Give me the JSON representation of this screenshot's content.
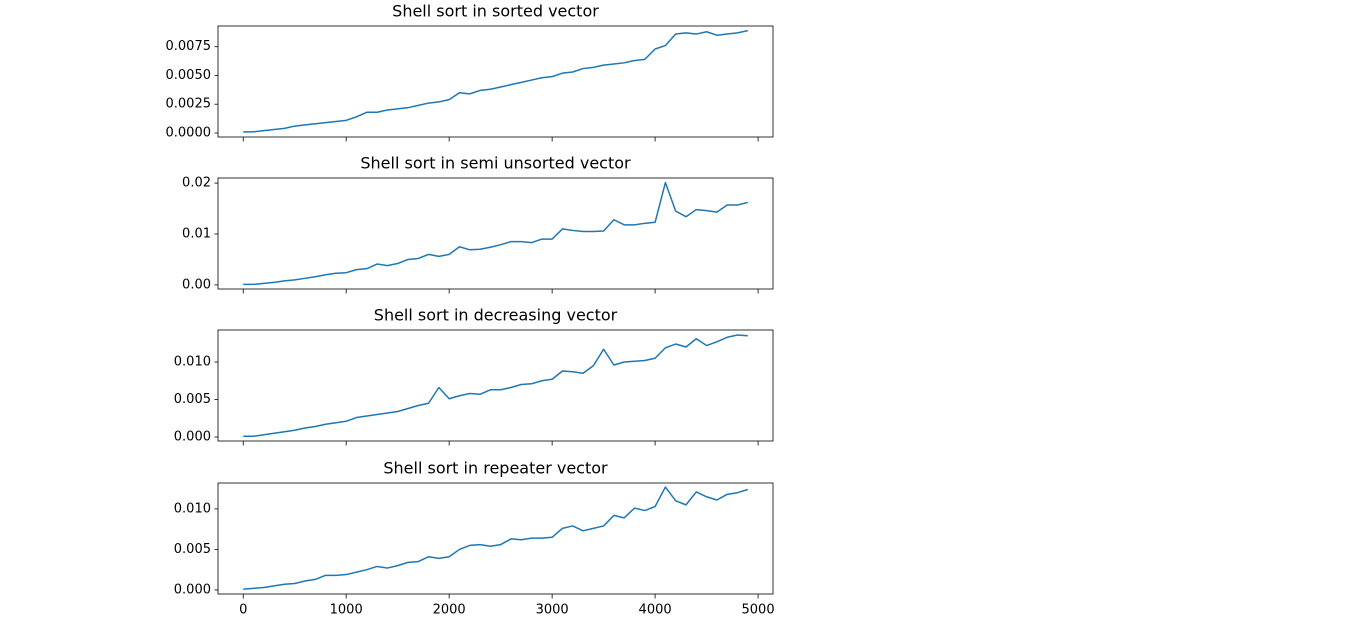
{
  "chart_data": [
    {
      "type": "line",
      "title": "Shell sort in sorted vector",
      "color": "#1f77b4",
      "x": [
        0,
        100,
        200,
        300,
        400,
        500,
        600,
        700,
        800,
        900,
        1000,
        1100,
        1200,
        1300,
        1400,
        1500,
        1600,
        1700,
        1800,
        1900,
        2000,
        2100,
        2200,
        2300,
        2400,
        2500,
        2600,
        2700,
        2800,
        2900,
        3000,
        3100,
        3200,
        3300,
        3400,
        3500,
        3600,
        3700,
        3800,
        3900,
        4000,
        4100,
        4200,
        4300,
        4400,
        4500,
        4600,
        4700,
        4800,
        4900
      ],
      "values": [
        0.0001,
        0.0001,
        0.0002,
        0.0003,
        0.0004,
        0.0006,
        0.0007,
        0.0008,
        0.0009,
        0.001,
        0.0011,
        0.0014,
        0.0018,
        0.0018,
        0.002,
        0.0021,
        0.0022,
        0.0024,
        0.0026,
        0.0027,
        0.0029,
        0.0035,
        0.0034,
        0.0037,
        0.0038,
        0.004,
        0.0042,
        0.0044,
        0.0046,
        0.0048,
        0.0049,
        0.0052,
        0.0053,
        0.0056,
        0.0057,
        0.0059,
        0.006,
        0.0061,
        0.0063,
        0.0064,
        0.0073,
        0.0076,
        0.0086,
        0.0087,
        0.0086,
        0.0088,
        0.0085,
        0.0086,
        0.0087,
        0.0089
      ],
      "xlim": [
        -245,
        5145
      ],
      "xticks": [
        0,
        1000,
        2000,
        3000,
        4000,
        5000
      ],
      "ylim": [
        -0.00035,
        0.0093
      ],
      "yticks": [
        {
          "value": 0,
          "label": "0.0000"
        },
        {
          "value": 0.0025,
          "label": "0.0025"
        },
        {
          "value": 0.005,
          "label": "0.0050"
        },
        {
          "value": 0.0075,
          "label": "0.0075"
        }
      ]
    },
    {
      "type": "line",
      "title": "Shell sort in semi unsorted vector",
      "color": "#1f77b4",
      "x": [
        0,
        100,
        200,
        300,
        400,
        500,
        600,
        700,
        800,
        900,
        1000,
        1100,
        1200,
        1300,
        1400,
        1500,
        1600,
        1700,
        1800,
        1900,
        2000,
        2100,
        2200,
        2300,
        2400,
        2500,
        2600,
        2700,
        2800,
        2900,
        3000,
        3100,
        3200,
        3300,
        3400,
        3500,
        3600,
        3700,
        3800,
        3900,
        4000,
        4100,
        4200,
        4300,
        4400,
        4500,
        4600,
        4700,
        4800,
        4900
      ],
      "values": [
        0.0001,
        0.0001,
        0.0003,
        0.0005,
        0.0008,
        0.001,
        0.0013,
        0.0016,
        0.002,
        0.0023,
        0.0024,
        0.003,
        0.0032,
        0.0041,
        0.0038,
        0.0042,
        0.005,
        0.0052,
        0.006,
        0.0056,
        0.006,
        0.0075,
        0.0069,
        0.007,
        0.0074,
        0.0079,
        0.0085,
        0.0085,
        0.0083,
        0.009,
        0.009,
        0.011,
        0.0107,
        0.0105,
        0.0105,
        0.0106,
        0.0128,
        0.0118,
        0.0118,
        0.0121,
        0.0123,
        0.0201,
        0.0145,
        0.0134,
        0.0148,
        0.0146,
        0.0143,
        0.0157,
        0.0157,
        0.0162
      ],
      "xlim": [
        -245,
        5145
      ],
      "xticks": [
        0,
        1000,
        2000,
        3000,
        4000,
        5000
      ],
      "ylim": [
        -0.0008,
        0.021
      ],
      "yticks": [
        {
          "value": 0,
          "label": "0.00"
        },
        {
          "value": 0.01,
          "label": "0.01"
        },
        {
          "value": 0.02,
          "label": "0.02"
        }
      ]
    },
    {
      "type": "line",
      "title": "Shell sort in decreasing vector",
      "color": "#1f77b4",
      "x": [
        0,
        100,
        200,
        300,
        400,
        500,
        600,
        700,
        800,
        900,
        1000,
        1100,
        1200,
        1300,
        1400,
        1500,
        1600,
        1700,
        1800,
        1900,
        2000,
        2100,
        2200,
        2300,
        2400,
        2500,
        2600,
        2700,
        2800,
        2900,
        3000,
        3100,
        3200,
        3300,
        3400,
        3500,
        3600,
        3700,
        3800,
        3900,
        4000,
        4100,
        4200,
        4300,
        4400,
        4500,
        4600,
        4700,
        4800,
        4900
      ],
      "values": [
        0.0001,
        0.0001,
        0.0003,
        0.0005,
        0.0007,
        0.0009,
        0.0012,
        0.0014,
        0.0017,
        0.0019,
        0.0021,
        0.0026,
        0.0028,
        0.003,
        0.0032,
        0.0034,
        0.0038,
        0.0042,
        0.0045,
        0.0066,
        0.0051,
        0.0055,
        0.0058,
        0.0057,
        0.0063,
        0.0063,
        0.0066,
        0.007,
        0.0071,
        0.0075,
        0.0077,
        0.0088,
        0.0087,
        0.0085,
        0.0095,
        0.0117,
        0.0096,
        0.01,
        0.0101,
        0.0102,
        0.0105,
        0.0119,
        0.0124,
        0.012,
        0.0131,
        0.0122,
        0.0127,
        0.0133,
        0.0136,
        0.0135
      ],
      "xlim": [
        -245,
        5145
      ],
      "xticks": [
        0,
        1000,
        2000,
        3000,
        4000,
        5000
      ],
      "ylim": [
        -0.00053,
        0.01427
      ],
      "yticks": [
        {
          "value": 0,
          "label": "0.000"
        },
        {
          "value": 0.005,
          "label": "0.005"
        },
        {
          "value": 0.01,
          "label": "0.010"
        }
      ]
    },
    {
      "type": "line",
      "title": "Shell sort in repeater vector",
      "color": "#1f77b4",
      "x": [
        0,
        100,
        200,
        300,
        400,
        500,
        600,
        700,
        800,
        900,
        1000,
        1100,
        1200,
        1300,
        1400,
        1500,
        1600,
        1700,
        1800,
        1900,
        2000,
        2100,
        2200,
        2300,
        2400,
        2500,
        2600,
        2700,
        2800,
        2900,
        3000,
        3100,
        3200,
        3300,
        3400,
        3500,
        3600,
        3700,
        3800,
        3900,
        4000,
        4100,
        4200,
        4300,
        4400,
        4500,
        4600,
        4700,
        4800,
        4900
      ],
      "values": [
        0.0001,
        0.0002,
        0.0003,
        0.0005,
        0.0007,
        0.0008,
        0.0011,
        0.0013,
        0.0018,
        0.0018,
        0.0019,
        0.0022,
        0.0025,
        0.0029,
        0.0027,
        0.003,
        0.0034,
        0.0035,
        0.0041,
        0.0039,
        0.0041,
        0.005,
        0.0055,
        0.0056,
        0.0054,
        0.0056,
        0.0063,
        0.0062,
        0.0064,
        0.0064,
        0.0065,
        0.0076,
        0.0079,
        0.0073,
        0.0076,
        0.0079,
        0.0092,
        0.0089,
        0.0101,
        0.0098,
        0.0103,
        0.0127,
        0.011,
        0.0105,
        0.0121,
        0.0115,
        0.0111,
        0.0118,
        0.012,
        0.0124
      ],
      "xlim": [
        -245,
        5145
      ],
      "xticks": [
        0,
        1000,
        2000,
        3000,
        4000,
        5000
      ],
      "ylim": [
        -0.0005,
        0.0132
      ],
      "yticks": [
        {
          "value": 0,
          "label": "0.000"
        },
        {
          "value": 0.005,
          "label": "0.005"
        },
        {
          "value": 0.01,
          "label": "0.010"
        }
      ]
    }
  ]
}
